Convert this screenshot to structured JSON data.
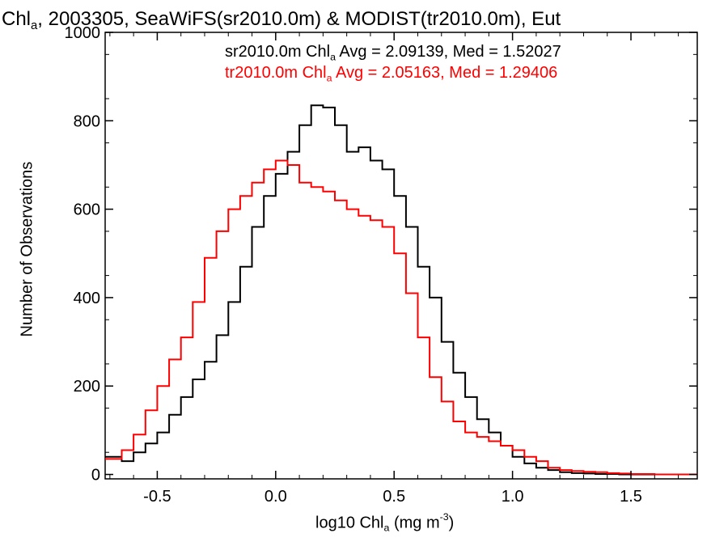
{
  "chart_data": {
    "type": "line",
    "title": {
      "lead": "Chl",
      "sub": "a",
      "rest": ", 2003305, SeaWiFS(sr2010.0m) & MODIST(tr2010.0m), Eut"
    },
    "xlabel": {
      "lead": "log10 Chl",
      "sub": "a",
      "rest": " (mg m",
      "sup": "-3",
      "tail": ")"
    },
    "ylabel": "Number of Observations",
    "xlim": [
      -0.72,
      1.78
    ],
    "ylim": [
      -10,
      1000
    ],
    "xticks": [
      "-0.5",
      "0.0",
      "0.5",
      "1.0",
      "1.5"
    ],
    "xtick_values": [
      -0.5,
      0.0,
      0.5,
      1.0,
      1.5
    ],
    "yticks": [
      "0",
      "200",
      "400",
      "600",
      "800",
      "1000"
    ],
    "ytick_values": [
      0,
      200,
      400,
      600,
      800,
      1000
    ],
    "grid": false,
    "legend_placement": "top",
    "series": [
      {
        "name": "sr2010.0m",
        "color": "#000000",
        "legend": {
          "lead": "sr2010.0m Chl",
          "sub": "a",
          "rest": " Avg = 2.09139, Med = 1.52027"
        },
        "x": [
          -0.72,
          -0.65,
          -0.6,
          -0.55,
          -0.5,
          -0.45,
          -0.4,
          -0.35,
          -0.3,
          -0.25,
          -0.2,
          -0.15,
          -0.1,
          -0.05,
          0.0,
          0.05,
          0.1,
          0.15,
          0.2,
          0.25,
          0.3,
          0.35,
          0.4,
          0.45,
          0.5,
          0.55,
          0.6,
          0.65,
          0.7,
          0.75,
          0.8,
          0.85,
          0.9,
          0.95,
          1.0,
          1.05,
          1.1,
          1.15,
          1.2,
          1.25,
          1.3,
          1.35,
          1.4,
          1.45,
          1.5,
          1.55,
          1.6,
          1.65,
          1.7,
          1.78
        ],
        "y": [
          40,
          30,
          50,
          70,
          95,
          135,
          175,
          215,
          255,
          315,
          390,
          470,
          560,
          630,
          680,
          730,
          790,
          835,
          830,
          790,
          730,
          740,
          710,
          690,
          630,
          560,
          470,
          400,
          300,
          230,
          175,
          125,
          95,
          65,
          40,
          25,
          15,
          10,
          5,
          3,
          2,
          1,
          1,
          0,
          0,
          0,
          0,
          0,
          0,
          0
        ]
      },
      {
        "name": "tr2010.0m",
        "color": "#ff0000",
        "legend": {
          "lead": "tr2010.0m Chl",
          "sub": "a",
          "rest": " Avg = 2.05163, Med = 1.29406"
        },
        "x": [
          -0.72,
          -0.65,
          -0.6,
          -0.55,
          -0.5,
          -0.45,
          -0.4,
          -0.35,
          -0.3,
          -0.25,
          -0.2,
          -0.15,
          -0.1,
          -0.05,
          0.0,
          0.05,
          0.1,
          0.15,
          0.2,
          0.25,
          0.3,
          0.35,
          0.4,
          0.45,
          0.5,
          0.55,
          0.6,
          0.65,
          0.7,
          0.75,
          0.8,
          0.85,
          0.9,
          0.95,
          1.0,
          1.05,
          1.1,
          1.15,
          1.2,
          1.25,
          1.3,
          1.35,
          1.4,
          1.45,
          1.5,
          1.55,
          1.6,
          1.65,
          1.7,
          1.78
        ],
        "y": [
          35,
          55,
          90,
          145,
          200,
          260,
          310,
          390,
          490,
          550,
          600,
          630,
          660,
          690,
          710,
          700,
          660,
          650,
          640,
          620,
          600,
          585,
          575,
          560,
          500,
          410,
          310,
          220,
          165,
          120,
          95,
          85,
          75,
          65,
          55,
          40,
          30,
          15,
          10,
          8,
          6,
          5,
          3,
          2,
          1,
          1,
          0,
          0,
          0,
          0
        ]
      }
    ]
  }
}
